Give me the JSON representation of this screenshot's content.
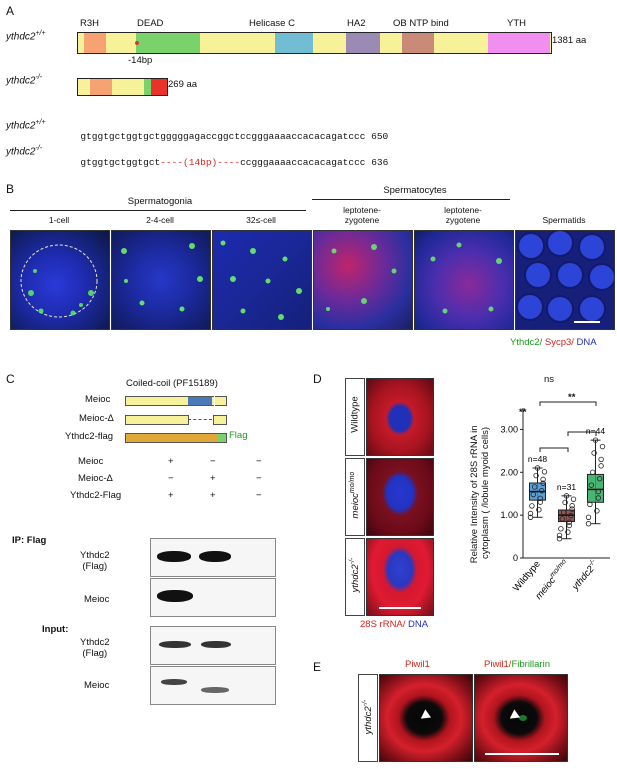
{
  "panels": {
    "a": "A",
    "b": "B",
    "c": "C",
    "d": "D",
    "e": "E"
  },
  "panelA": {
    "wt_label": "ythdc2",
    "wt_sup": "+/+",
    "ko_label": "ythdc2",
    "ko_sup": "-/-",
    "domains": [
      {
        "name": "R3H",
        "color": "#f6a272"
      },
      {
        "name": "DEAD",
        "color": "#7ad36a"
      },
      {
        "name": "Helicase C",
        "color": "#72bcd4"
      },
      {
        "name": "HA2",
        "color": "#9b8ab3"
      },
      {
        "name": "OB NTP bind",
        "color": "#c98a78"
      },
      {
        "name": "YTH",
        "color": "#f08ff0"
      }
    ],
    "bar_color": "#f7f29a",
    "wt_length": "1381 aa",
    "ko_length": "269 aa",
    "deletion": "-14bp",
    "seq_wt": "gtggtgctggtgctgggggagaccggctccgggaaaaccacacagatccc",
    "seq_wt_num": "650",
    "seq_ko_a": "gtggtgctggtgct",
    "seq_ko_gap": "----(14bp)----",
    "seq_ko_b": "ccgggaaaaccacacagatccc",
    "seq_ko_num": "636"
  },
  "panelB": {
    "group1": "Spermatogonia",
    "group2": "Spermatocytes",
    "cols": [
      "1-cell",
      "2-4-cell",
      "32≤-cell",
      "leptotene-\nzygotene",
      "leptotene-\nzygotene",
      "Spermatids"
    ],
    "legend_green": "Ythdc2/",
    "legend_red": "Sycp3/",
    "legend_blue": "DNA"
  },
  "panelC": {
    "domain_title": "Coiled-coil (PF15189)",
    "constructs": [
      "Meioc",
      "Meioc-Δ",
      "Ythdc2-flag"
    ],
    "flag": "Flag",
    "rows": [
      {
        "label": "Meioc",
        "vals": [
          "+",
          "−",
          "−"
        ]
      },
      {
        "label": "Meioc-Δ",
        "vals": [
          "−",
          "+",
          "−"
        ]
      },
      {
        "label": "Ythdc2-Flag",
        "vals": [
          "+",
          "+",
          "−"
        ]
      }
    ],
    "ip_label": "IP: Flag",
    "input_label": "Input:",
    "blot1": "Ythdc2\n(Flag)",
    "blot2": "Meioc",
    "blot3": "Ythdc2\n(Flag)",
    "blot4": "Meioc"
  },
  "panelD": {
    "row_labels": [
      "Wildtype",
      "meioc",
      "ythdc2"
    ],
    "row_sups": [
      "",
      "mo/mo",
      "-/-"
    ],
    "legend_red": "28S rRNA/",
    "legend_blue": "DNA",
    "ylabel": "Relative Intensity of 28S rRNA in\ncytoplasm ( /lobule myoid cells)",
    "sig_ns": "ns",
    "sig1": "**",
    "sig2": "**"
  },
  "chart_data": {
    "type": "box",
    "categories": [
      "Wildtype",
      "meioc mo/mo",
      "ythdc2 -/-"
    ],
    "ylim": [
      0,
      3.5
    ],
    "yticks": [
      0,
      1.0,
      2.0,
      3.0
    ],
    "ytick_labels": [
      "0",
      "1.00",
      "2.00",
      "3.00"
    ],
    "n_labels": [
      "n=48",
      "n=31",
      "n=44"
    ],
    "colors": [
      "#3b8fd6",
      "#7a3b3b",
      "#2aa85b"
    ],
    "boxes": [
      {
        "q1": 1.35,
        "median": 1.55,
        "q3": 1.75,
        "whisker_low": 0.95,
        "whisker_high": 2.1
      },
      {
        "q1": 0.85,
        "median": 1.0,
        "q3": 1.12,
        "whisker_low": 0.45,
        "whisker_high": 1.45
      },
      {
        "q1": 1.3,
        "median": 1.6,
        "q3": 1.95,
        "whisker_low": 0.8,
        "whisker_high": 2.75
      }
    ]
  },
  "panelE": {
    "side_label": "ythdc2",
    "side_sup": "-/-",
    "t1": "Piwil1",
    "t2a": "Piwil1/",
    "t2b": "Fibrillarin"
  }
}
